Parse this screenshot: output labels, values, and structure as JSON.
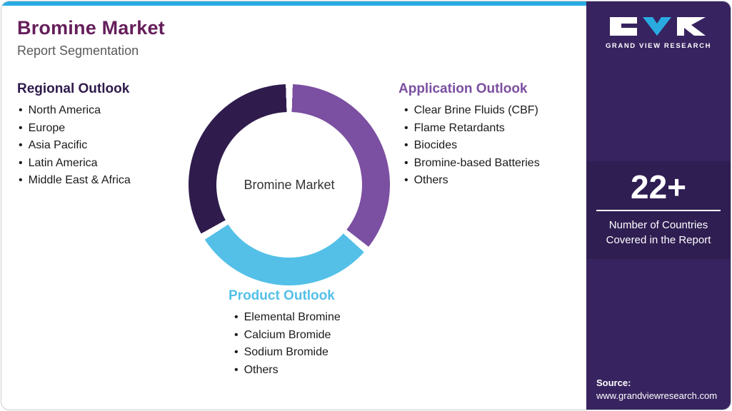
{
  "header": {
    "title": "Bromine Market",
    "subtitle": "Report Segmentation"
  },
  "sections": {
    "regional": {
      "heading": "Regional Outlook",
      "items": [
        "North America",
        "Europe",
        "Asia Pacific",
        "Latin America",
        "Middle East & Africa"
      ]
    },
    "application": {
      "heading": "Application Outlook",
      "items": [
        "Clear Brine Fluids (CBF)",
        "Flame Retardants",
        "Biocides",
        "Bromine-based Batteries",
        "Others"
      ]
    },
    "product": {
      "heading": "Product Outlook",
      "items": [
        "Elemental Bromine",
        "Calcium Bromide",
        "Sodium Bromide",
        "Others"
      ]
    }
  },
  "donut": {
    "center_label": "Bromine Market"
  },
  "chart_data": {
    "type": "pie",
    "title": "Bromine Market Report Segmentation",
    "center_label": "Bromine Market",
    "segments": [
      {
        "label": "Application Outlook",
        "color": "#7B4FA1",
        "start_deg": 2,
        "end_deg": 128
      },
      {
        "label": "Product Outlook",
        "color": "#54C0E8",
        "start_deg": 132,
        "end_deg": 237
      },
      {
        "label": "Regional Outlook",
        "color": "#2F1B4C",
        "start_deg": 241,
        "end_deg": 358
      }
    ]
  },
  "sidebar": {
    "logo_text": "GRAND VIEW RESEARCH",
    "stat_value": "22+",
    "stat_caption": "Number of Countries Covered in the Report",
    "source_label": "Source:",
    "source_url": "www.grandviewresearch.com"
  },
  "colors": {
    "title_maroon": "#651E5A",
    "subtitle_gray": "#58595B",
    "dark_purple": "#2F1B4C",
    "purple": "#7B4FA1",
    "light_blue": "#54C0E8",
    "cyan": "#29ABE2",
    "sidebar_bg": "#37235F",
    "text_dark": "#1A1A1A"
  }
}
